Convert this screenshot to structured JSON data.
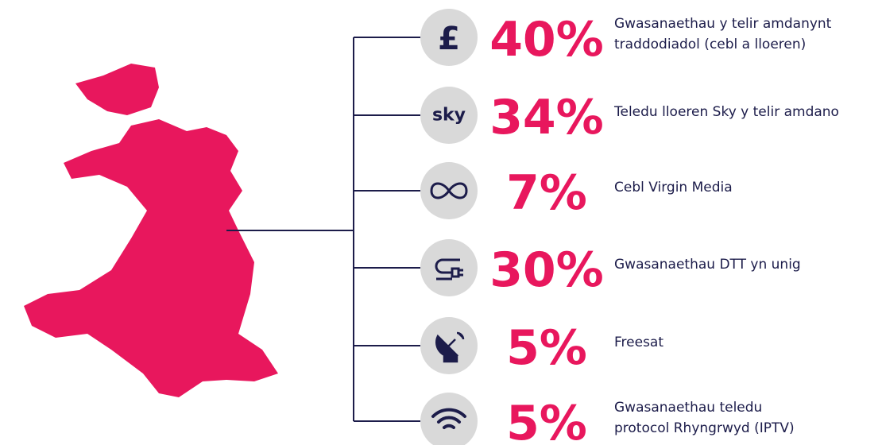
{
  "items": [
    {
      "icon": "£",
      "percent": "40%",
      "lines": [
        "Gwasanaethau y telir amdanynt",
        "traddodiadol (cebl a lloeren)"
      ]
    },
    {
      "icon": "sky",
      "percent": "34%",
      "lines": [
        "Teledu lloeren Sky y telir amdano"
      ]
    },
    {
      "percent": "7%",
      "lines": [
        "Cebl Virgin Media"
      ]
    },
    {
      "percent": "30%",
      "lines": [
        "Gwasanaethau DTT yn unig"
      ]
    },
    {
      "percent": "5%",
      "lines": [
        "Freesat"
      ]
    },
    {
      "percent": "5%",
      "lines": [
        "Gwasanaethau teledu",
        "protocol Rhyngrwyd (IPTV)"
      ]
    }
  ]
}
